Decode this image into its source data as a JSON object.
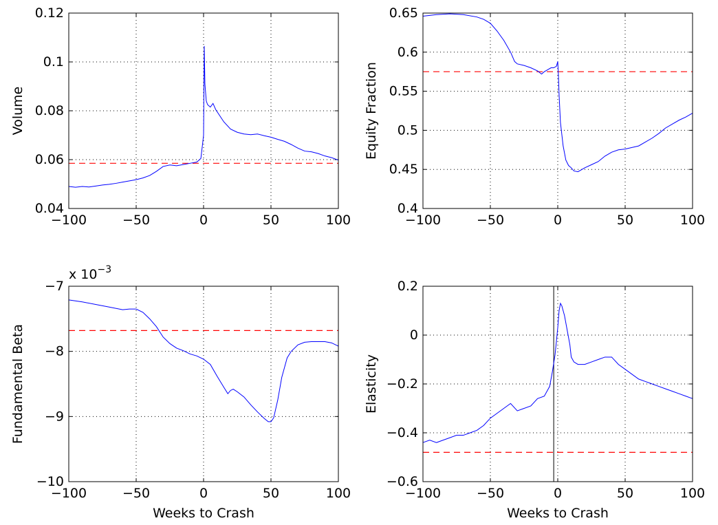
{
  "chart_data": [
    {
      "type": "line",
      "title": "",
      "xlabel": "",
      "ylabel": "Volume",
      "xlim": [
        -100,
        100
      ],
      "ylim": [
        0.04,
        0.12
      ],
      "xticks": [
        -100,
        -50,
        0,
        50,
        100
      ],
      "xtick_labels": [
        "−100",
        "−50",
        "0",
        "50",
        "100"
      ],
      "yticks": [
        0.04,
        0.06,
        0.08,
        0.1,
        0.12
      ],
      "ytick_labels": [
        "0.04",
        "0.06",
        "0.08",
        "0.1",
        "0.12"
      ],
      "grid": true,
      "series": [
        {
          "color": "#0000ff",
          "x": [
            -100,
            -95,
            -90,
            -85,
            -80,
            -75,
            -70,
            -65,
            -60,
            -55,
            -50,
            -45,
            -40,
            -35,
            -30,
            -25,
            -20,
            -15,
            -10,
            -5,
            -2,
            0,
            0.5,
            1,
            2,
            3,
            5,
            7,
            9,
            12,
            15,
            20,
            25,
            30,
            35,
            40,
            45,
            50,
            55,
            60,
            65,
            70,
            75,
            80,
            85,
            90,
            95,
            100
          ],
          "y": [
            0.049,
            0.0487,
            0.049,
            0.0488,
            0.0492,
            0.0496,
            0.0499,
            0.0503,
            0.0508,
            0.0513,
            0.0518,
            0.0525,
            0.0535,
            0.0552,
            0.0572,
            0.0578,
            0.0575,
            0.058,
            0.0585,
            0.059,
            0.0605,
            0.07,
            0.1065,
            0.091,
            0.084,
            0.0825,
            0.0815,
            0.083,
            0.0805,
            0.078,
            0.0755,
            0.0725,
            0.0712,
            0.0705,
            0.0702,
            0.0705,
            0.0698,
            0.0692,
            0.0683,
            0.0675,
            0.0662,
            0.0647,
            0.0635,
            0.0632,
            0.0625,
            0.0615,
            0.0608,
            0.0598
          ]
        }
      ],
      "reference_line": {
        "y": 0.0585,
        "color": "#ff0000",
        "style": "dashed"
      }
    },
    {
      "type": "line",
      "title": "",
      "xlabel": "",
      "ylabel": "Equity Fraction",
      "xlim": [
        -100,
        100
      ],
      "ylim": [
        0.4,
        0.65
      ],
      "xticks": [
        -100,
        -50,
        0,
        50,
        100
      ],
      "xtick_labels": [
        "−100",
        "−50",
        "0",
        "50",
        "100"
      ],
      "yticks": [
        0.4,
        0.45,
        0.5,
        0.55,
        0.6,
        0.65
      ],
      "ytick_labels": [
        "0.4",
        "0.45",
        "0.5",
        "0.55",
        "0.6",
        "0.65"
      ],
      "grid": true,
      "series": [
        {
          "color": "#0000ff",
          "x": [
            -100,
            -90,
            -80,
            -70,
            -60,
            -55,
            -50,
            -45,
            -40,
            -35,
            -32,
            -30,
            -25,
            -20,
            -15,
            -12,
            -10,
            -8,
            -5,
            -3,
            -1,
            0,
            0.5,
            1,
            2,
            4,
            6,
            8,
            10,
            12,
            15,
            20,
            25,
            30,
            35,
            40,
            45,
            50,
            55,
            60,
            65,
            70,
            75,
            80,
            85,
            90,
            95,
            100
          ],
          "y": [
            0.646,
            0.648,
            0.649,
            0.648,
            0.645,
            0.642,
            0.637,
            0.627,
            0.615,
            0.6,
            0.588,
            0.585,
            0.583,
            0.58,
            0.576,
            0.572,
            0.575,
            0.577,
            0.58,
            0.58,
            0.582,
            0.588,
            0.57,
            0.545,
            0.51,
            0.48,
            0.462,
            0.455,
            0.452,
            0.448,
            0.447,
            0.452,
            0.456,
            0.46,
            0.467,
            0.472,
            0.475,
            0.476,
            0.478,
            0.48,
            0.485,
            0.49,
            0.496,
            0.503,
            0.508,
            0.513,
            0.517,
            0.522
          ]
        }
      ],
      "reference_line": {
        "y": 0.575,
        "color": "#ff0000",
        "style": "dashed"
      }
    },
    {
      "type": "line",
      "title": "",
      "xlabel": "Weeks to Crash",
      "ylabel": "Fundamental Beta",
      "xlim": [
        -100,
        100
      ],
      "ylim": [
        -10,
        -7
      ],
      "y_exponent_label": "x 10",
      "y_exponent": "−3",
      "xticks": [
        -100,
        -50,
        0,
        50,
        100
      ],
      "xtick_labels": [
        "−100",
        "−50",
        "0",
        "50",
        "100"
      ],
      "yticks": [
        -10,
        -9,
        -8,
        -7
      ],
      "ytick_labels": [
        "−10",
        "−9",
        "−8",
        "−7"
      ],
      "grid": true,
      "series": [
        {
          "color": "#0000ff",
          "x": [
            -100,
            -90,
            -80,
            -70,
            -60,
            -55,
            -50,
            -45,
            -40,
            -35,
            -30,
            -25,
            -20,
            -15,
            -10,
            -5,
            0,
            5,
            10,
            15,
            18,
            20,
            22,
            25,
            30,
            35,
            40,
            45,
            48,
            50,
            52,
            55,
            58,
            62,
            65,
            70,
            75,
            80,
            85,
            90,
            95,
            100
          ],
          "y": [
            -7.21,
            -7.24,
            -7.28,
            -7.32,
            -7.36,
            -7.35,
            -7.35,
            -7.4,
            -7.5,
            -7.62,
            -7.78,
            -7.88,
            -7.95,
            -7.99,
            -8.04,
            -8.07,
            -8.12,
            -8.2,
            -8.38,
            -8.55,
            -8.65,
            -8.6,
            -8.58,
            -8.62,
            -8.7,
            -8.82,
            -8.93,
            -9.03,
            -9.08,
            -9.08,
            -9.02,
            -8.75,
            -8.4,
            -8.1,
            -8.0,
            -7.9,
            -7.86,
            -7.85,
            -7.85,
            -7.85,
            -7.87,
            -7.92
          ]
        }
      ],
      "reference_line": {
        "y": -7.68,
        "color": "#ff0000",
        "style": "dashed"
      }
    },
    {
      "type": "line",
      "title": "",
      "xlabel": "Weeks to Crash",
      "ylabel": "Elasticity",
      "xlim": [
        -100,
        100
      ],
      "ylim": [
        -0.6,
        0.2
      ],
      "xticks": [
        -100,
        -50,
        0,
        50,
        100
      ],
      "xtick_labels": [
        "−100",
        "−50",
        "0",
        "50",
        "100"
      ],
      "yticks": [
        -0.6,
        -0.4,
        -0.2,
        0,
        0.2
      ],
      "ytick_labels": [
        "−0.6",
        "−0.4",
        "−0.2",
        "0",
        "0.2"
      ],
      "grid": true,
      "series": [
        {
          "color": "#0000ff",
          "x": [
            -100,
            -95,
            -90,
            -85,
            -80,
            -75,
            -70,
            -65,
            -60,
            -55,
            -50,
            -45,
            -40,
            -35,
            -30,
            -25,
            -20,
            -15,
            -10,
            -8,
            -6,
            -4,
            -2,
            0,
            1,
            2,
            3,
            5,
            7,
            9,
            10,
            12,
            15,
            20,
            25,
            30,
            35,
            40,
            45,
            50,
            55,
            60,
            65,
            70,
            75,
            80,
            85,
            90,
            95,
            100
          ],
          "y": [
            -0.44,
            -0.43,
            -0.44,
            -0.43,
            -0.42,
            -0.41,
            -0.41,
            -0.4,
            -0.39,
            -0.37,
            -0.34,
            -0.32,
            -0.3,
            -0.28,
            -0.31,
            -0.3,
            -0.29,
            -0.26,
            -0.25,
            -0.23,
            -0.21,
            -0.15,
            -0.08,
            0.03,
            0.1,
            0.13,
            0.12,
            0.08,
            0.02,
            -0.04,
            -0.09,
            -0.11,
            -0.12,
            -0.12,
            -0.11,
            -0.1,
            -0.09,
            -0.09,
            -0.12,
            -0.14,
            -0.16,
            -0.18,
            -0.19,
            -0.2,
            -0.21,
            -0.22,
            -0.23,
            -0.24,
            -0.25,
            -0.26
          ]
        }
      ],
      "reference_line": {
        "y": -0.48,
        "color": "#ff0000",
        "style": "dashed"
      },
      "vertical_line": {
        "x": -3,
        "color": "#000000"
      }
    }
  ]
}
